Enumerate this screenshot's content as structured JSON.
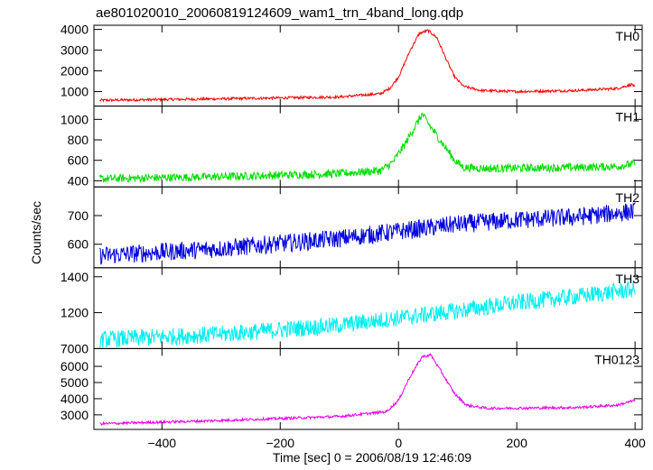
{
  "chart_data": {
    "type": "line",
    "title": "ae801020010_20060819124609_wam1_trn_4band_long.qdp",
    "xlabel": "Time [sec] 0 = 2006/08/19 12:46:09",
    "ylabel": "Counts/sec",
    "xlim": [
      -515,
      412
    ],
    "xticks": [
      -400,
      -200,
      0,
      200,
      400
    ],
    "xtick_labels": [
      "−400",
      "−200",
      "0",
      "200",
      "400"
    ],
    "grid": false,
    "panels": [
      {
        "name": "TH0",
        "color": "#ff0000",
        "ylim": [
          300,
          4200
        ],
        "yticks": [
          1000,
          2000,
          3000,
          4000
        ],
        "ytick_labels": [
          "1000",
          "2000",
          "3000",
          "4000"
        ],
        "noise": 40,
        "points": [
          [
            -505,
            580
          ],
          [
            -300,
            650
          ],
          [
            -100,
            740
          ],
          [
            -30,
            900
          ],
          [
            -15,
            1150
          ],
          [
            0,
            1700
          ],
          [
            20,
            3000
          ],
          [
            35,
            3800
          ],
          [
            50,
            3950
          ],
          [
            65,
            3600
          ],
          [
            80,
            2600
          ],
          [
            95,
            1700
          ],
          [
            110,
            1250
          ],
          [
            140,
            1050
          ],
          [
            200,
            1000
          ],
          [
            300,
            1050
          ],
          [
            370,
            1150
          ],
          [
            395,
            1350
          ],
          [
            400,
            1200
          ]
        ]
      },
      {
        "name": "TH1",
        "color": "#00dd00",
        "ylim": [
          340,
          1130
        ],
        "yticks": [
          400,
          600,
          800,
          1000
        ],
        "ytick_labels": [
          "400",
          "600",
          "800",
          "1000"
        ],
        "noise": 25,
        "points": [
          [
            -505,
            420
          ],
          [
            -300,
            440
          ],
          [
            -100,
            470
          ],
          [
            -30,
            500
          ],
          [
            -10,
            580
          ],
          [
            10,
            750
          ],
          [
            30,
            950
          ],
          [
            40,
            1050
          ],
          [
            55,
            920
          ],
          [
            75,
            760
          ],
          [
            95,
            600
          ],
          [
            110,
            530
          ],
          [
            150,
            520
          ],
          [
            300,
            530
          ],
          [
            370,
            540
          ],
          [
            400,
            570
          ]
        ]
      },
      {
        "name": "TH2",
        "color": "#0000dd",
        "ylim": [
          518,
          800
        ],
        "yticks": [
          600,
          700
        ],
        "ytick_labels": [
          "600",
          "700"
        ],
        "noise": 20,
        "points": [
          [
            -505,
            560
          ],
          [
            -300,
            585
          ],
          [
            -100,
            620
          ],
          [
            0,
            645
          ],
          [
            100,
            670
          ],
          [
            200,
            685
          ],
          [
            300,
            695
          ],
          [
            400,
            715
          ]
        ]
      },
      {
        "name": "TH3",
        "color": "#00eeee",
        "ylim": [
          1000,
          1450
        ],
        "yticks": [
          1200,
          1400
        ],
        "ytick_labels": [
          "1200",
          "1400"
        ],
        "noise": 30,
        "points": [
          [
            -505,
            1050
          ],
          [
            -300,
            1080
          ],
          [
            -100,
            1130
          ],
          [
            0,
            1170
          ],
          [
            100,
            1210
          ],
          [
            200,
            1255
          ],
          [
            300,
            1290
          ],
          [
            400,
            1330
          ]
        ]
      },
      {
        "name": "TH0123",
        "color": "#ee00ee",
        "ylim": [
          2100,
          7100
        ],
        "yticks": [
          3000,
          4000,
          5000,
          6000
        ],
        "ytick_labels": [
          "3000",
          "4000",
          "5000",
          "6000"
        ],
        "noise": 50,
        "points": [
          [
            -505,
            2450
          ],
          [
            -300,
            2650
          ],
          [
            -100,
            2900
          ],
          [
            -20,
            3200
          ],
          [
            0,
            3900
          ],
          [
            20,
            5400
          ],
          [
            40,
            6600
          ],
          [
            55,
            6700
          ],
          [
            75,
            5500
          ],
          [
            95,
            4300
          ],
          [
            115,
            3600
          ],
          [
            150,
            3400
          ],
          [
            300,
            3450
          ],
          [
            370,
            3600
          ],
          [
            400,
            3900
          ]
        ]
      }
    ],
    "extra_ytick_label": "7000"
  }
}
